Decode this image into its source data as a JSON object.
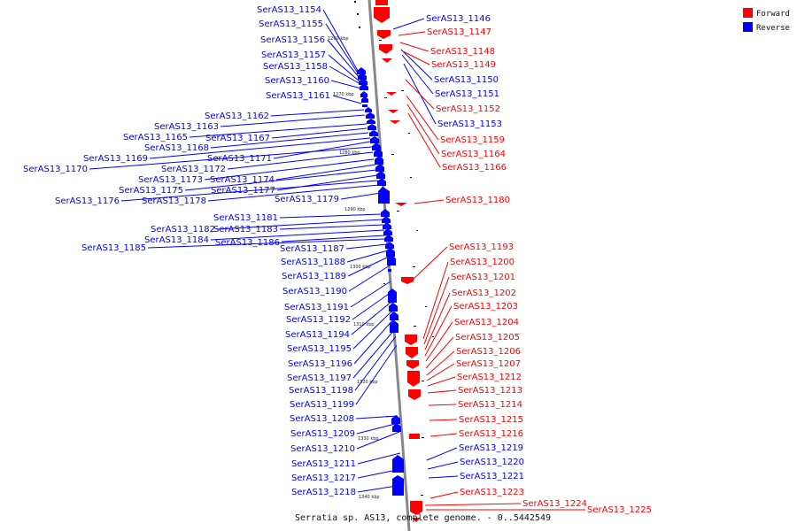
{
  "caption": "Serratia sp. AS13, complete genome. - 0..5442549",
  "legend": [
    {
      "label": "Forward",
      "color": "#ff0000"
    },
    {
      "label": "Reverse",
      "color": "#0000ff"
    }
  ],
  "axis": {
    "ticks": [
      "1260 kbp",
      "1270 kbp",
      "1280 kbp",
      "1290 kbp",
      "1300 kbp",
      "1310 kbp",
      "1320 kbp",
      "1330 kbp",
      "1340 kbp"
    ]
  },
  "reverse_genes": [
    "SerAS13_1154",
    "SerAS13_1155",
    "SerAS13_1156",
    "SerAS13_1157",
    "SerAS13_1158",
    "SerAS13_1160",
    "SerAS13_1161",
    "SerAS13_1162",
    "SerAS13_1163",
    "SerAS13_1165",
    "SerAS13_1167",
    "SerAS13_1168",
    "SerAS13_1169",
    "SerAS13_1171",
    "SerAS13_1170",
    "SerAS13_1172",
    "SerAS13_1173",
    "SerAS13_1174",
    "SerAS13_1175",
    "SerAS13_1177",
    "SerAS13_1176",
    "SerAS13_1178",
    "SerAS13_1179",
    "SerAS13_1181",
    "SerAS13_1182",
    "SerAS13_1183",
    "SerAS13_1184",
    "SerAS13_1186",
    "SerAS13_1185",
    "SerAS13_1187",
    "SerAS13_1188",
    "SerAS13_1189",
    "SerAS13_1190",
    "SerAS13_1191",
    "SerAS13_1192",
    "SerAS13_1194",
    "SerAS13_1195",
    "SerAS13_1196",
    "SerAS13_1197",
    "SerAS13_1198",
    "SerAS13_1199",
    "SerAS13_1208",
    "SerAS13_1209",
    "SerAS13_1210",
    "SerAS13_1211",
    "SerAS13_1217",
    "SerAS13_1218",
    "SerAS13_1146",
    "SerAS13_1150",
    "SerAS13_1151",
    "SerAS13_1153",
    "SerAS13_1219",
    "SerAS13_1220",
    "SerAS13_1221"
  ],
  "forward_genes": [
    "SerAS13_1147",
    "SerAS13_1148",
    "SerAS13_1149",
    "SerAS13_1152",
    "SerAS13_1159",
    "SerAS13_1164",
    "SerAS13_1166",
    "SerAS13_1180",
    "SerAS13_1193",
    "SerAS13_1200",
    "SerAS13_1201",
    "SerAS13_1202",
    "SerAS13_1203",
    "SerAS13_1204",
    "SerAS13_1205",
    "SerAS13_1206",
    "SerAS13_1207",
    "SerAS13_1212",
    "SerAS13_1213",
    "SerAS13_1214",
    "SerAS13_1215",
    "SerAS13_1216",
    "SerAS13_1223",
    "SerAS13_1224",
    "SerAS13_1225"
  ]
}
